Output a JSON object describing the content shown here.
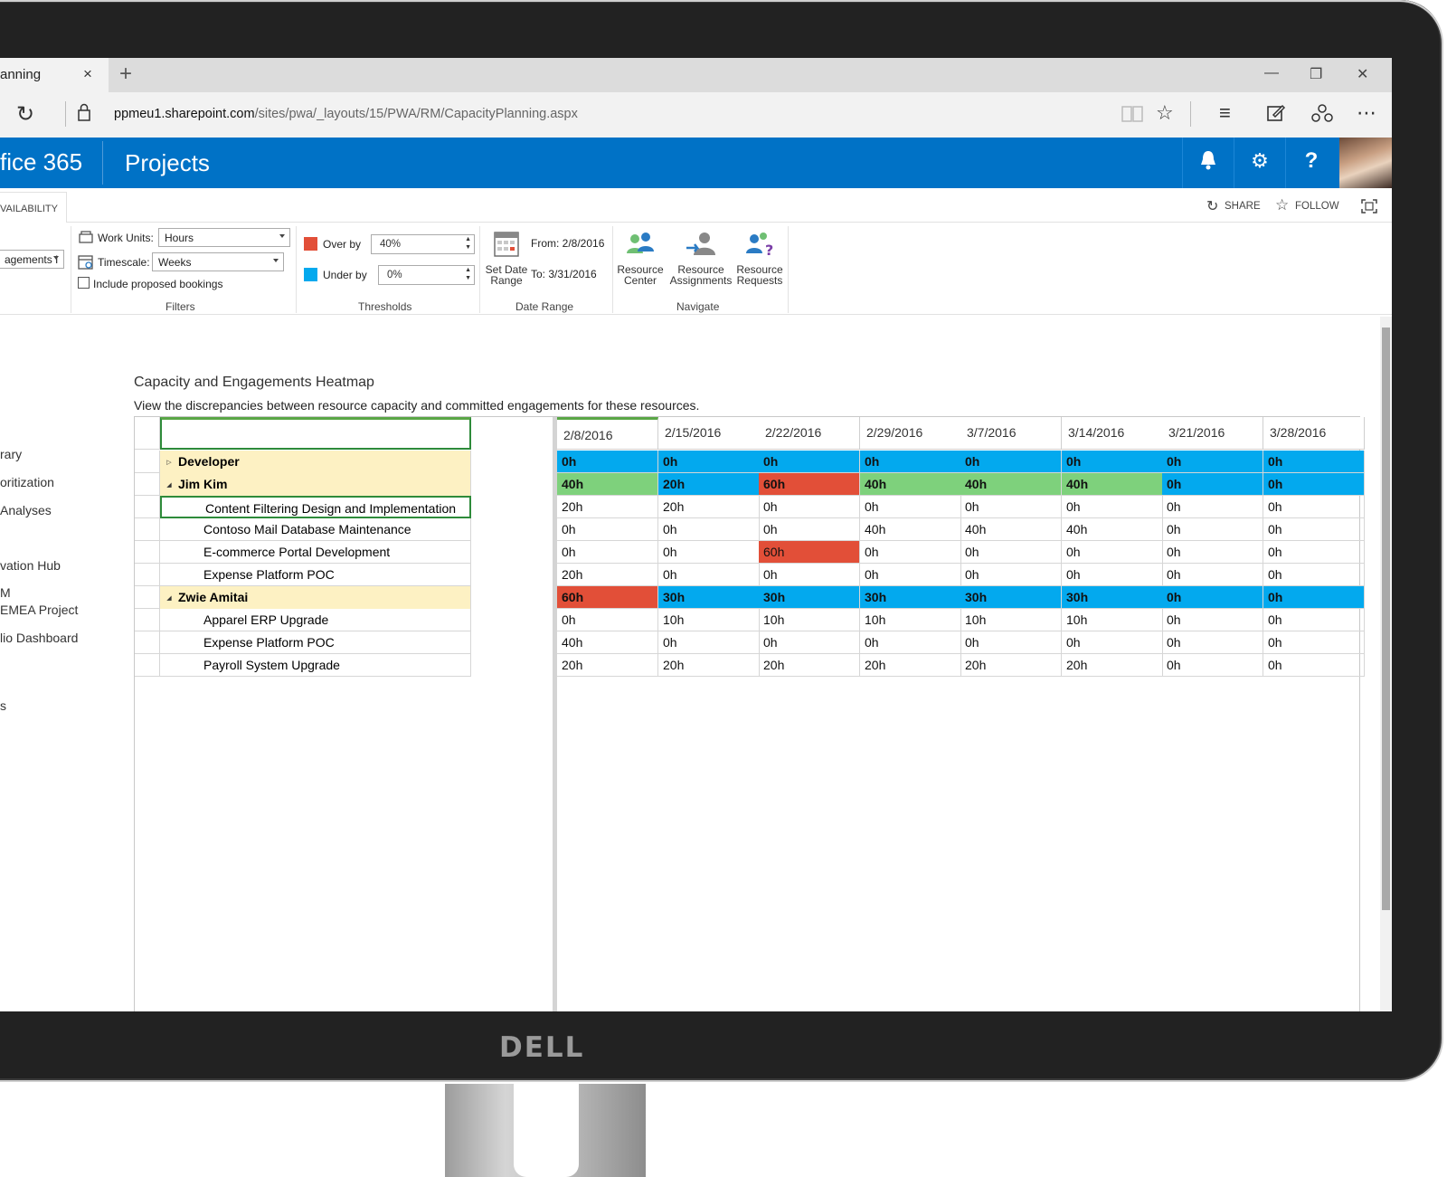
{
  "browser": {
    "tab_title": "anning",
    "tab_close": "×",
    "new_tab": "+",
    "url_host": "ppmeu1.sharepoint.com",
    "url_path": "/sites/pwa/_layouts/15/PWA/RM/CapacityPlanning.aspx",
    "win_min": "—",
    "win_restore": "❐",
    "win_close": "✕"
  },
  "suite": {
    "brand": "fice 365",
    "app": "Projects"
  },
  "ribbon_tabs": {
    "active": "VAILABILITY",
    "share": "SHARE",
    "follow": "FOLLOW"
  },
  "ribbon": {
    "view_select": "agements I",
    "work_units_label": "Work Units:",
    "work_units_value": "Hours",
    "timescale_label": "Timescale:",
    "timescale_value": "Weeks",
    "include_proposed": "Include proposed bookings",
    "filters_label": "Filters",
    "over_by_label": "Over by",
    "over_by_value": "40%",
    "under_by_label": "Under by",
    "under_by_value": "0%",
    "thresholds_label": "Thresholds",
    "set_date_line1": "Set Date",
    "set_date_line2": "Range",
    "from": "From: 2/8/2016",
    "to": "To: 3/31/2016",
    "date_range_label": "Date Range",
    "resource_center": [
      "Resource",
      "Center"
    ],
    "resource_assignments": [
      "Resource",
      "Assignments"
    ],
    "resource_requests": [
      "Resource",
      "Requests"
    ],
    "navigate_label": "Navigate"
  },
  "leftnav": [
    "rary",
    "oritization",
    "Analyses",
    "vation Hub",
    "M",
    "EMEA Project",
    "lio Dashboard",
    "s"
  ],
  "heatmap": {
    "title": "Capacity and Engagements Heatmap",
    "description": "View the discrepancies between resource capacity and committed engagements for these resources.",
    "weeks": [
      "2/8/2016",
      "2/15/2016",
      "2/22/2016",
      "2/29/2016",
      "3/7/2016",
      "3/14/2016",
      "3/21/2016",
      "3/28/2016"
    ],
    "rows": [
      {
        "label": "Developer",
        "level": 0,
        "expand": "▷",
        "values": [
          "0h",
          "0h",
          "0h",
          "0h",
          "0h",
          "0h",
          "0h",
          "0h"
        ],
        "colors": [
          "blue",
          "blue",
          "blue",
          "blue",
          "blue",
          "blue",
          "blue",
          "blue"
        ]
      },
      {
        "label": "Jim Kim",
        "level": 0,
        "expand": "◢",
        "values": [
          "40h",
          "20h",
          "60h",
          "40h",
          "40h",
          "40h",
          "0h",
          "0h"
        ],
        "colors": [
          "green",
          "blue",
          "red",
          "green",
          "green",
          "green",
          "blue",
          "blue"
        ]
      },
      {
        "label": "Content Filtering Design and Implementation",
        "level": 1,
        "values": [
          "20h",
          "20h",
          "0h",
          "0h",
          "0h",
          "0h",
          "0h",
          "0h"
        ],
        "colors": [
          "",
          "",
          "",
          "",
          "",
          "",
          "",
          ""
        ]
      },
      {
        "label": "Contoso Mail Database Maintenance",
        "level": 1,
        "values": [
          "0h",
          "0h",
          "0h",
          "40h",
          "40h",
          "40h",
          "0h",
          "0h"
        ],
        "colors": [
          "",
          "",
          "",
          "",
          "",
          "",
          "",
          ""
        ]
      },
      {
        "label": "E-commerce Portal Development",
        "level": 1,
        "values": [
          "0h",
          "0h",
          "60h",
          "0h",
          "0h",
          "0h",
          "0h",
          "0h"
        ],
        "colors": [
          "",
          "",
          "red",
          "",
          "",
          "",
          "",
          ""
        ]
      },
      {
        "label": "Expense Platform POC",
        "level": 1,
        "values": [
          "20h",
          "0h",
          "0h",
          "0h",
          "0h",
          "0h",
          "0h",
          "0h"
        ],
        "colors": [
          "",
          "",
          "",
          "",
          "",
          "",
          "",
          ""
        ]
      },
      {
        "label": "Zwie Amitai",
        "level": 0,
        "expand": "◢",
        "values": [
          "60h",
          "30h",
          "30h",
          "30h",
          "30h",
          "30h",
          "0h",
          "0h"
        ],
        "colors": [
          "red",
          "blue",
          "blue",
          "blue",
          "blue",
          "blue",
          "blue",
          "blue"
        ]
      },
      {
        "label": "Apparel ERP Upgrade",
        "level": 1,
        "values": [
          "0h",
          "10h",
          "10h",
          "10h",
          "10h",
          "10h",
          "0h",
          "0h"
        ],
        "colors": [
          "",
          "",
          "",
          "",
          "",
          "",
          "",
          ""
        ]
      },
      {
        "label": "Expense Platform POC",
        "level": 1,
        "values": [
          "40h",
          "0h",
          "0h",
          "0h",
          "0h",
          "0h",
          "0h",
          "0h"
        ],
        "colors": [
          "",
          "",
          "",
          "",
          "",
          "",
          "",
          ""
        ]
      },
      {
        "label": "Payroll System Upgrade",
        "level": 1,
        "values": [
          "20h",
          "20h",
          "20h",
          "20h",
          "20h",
          "20h",
          "0h",
          "0h"
        ],
        "colors": [
          "",
          "",
          "",
          "",
          "",
          "",
          "",
          ""
        ]
      }
    ]
  },
  "colors": {
    "blue": "#03a9ee",
    "green": "#7ed17c",
    "red": "#e24f38",
    "suite": "#0072c6"
  },
  "monitor_logo": "DELL"
}
